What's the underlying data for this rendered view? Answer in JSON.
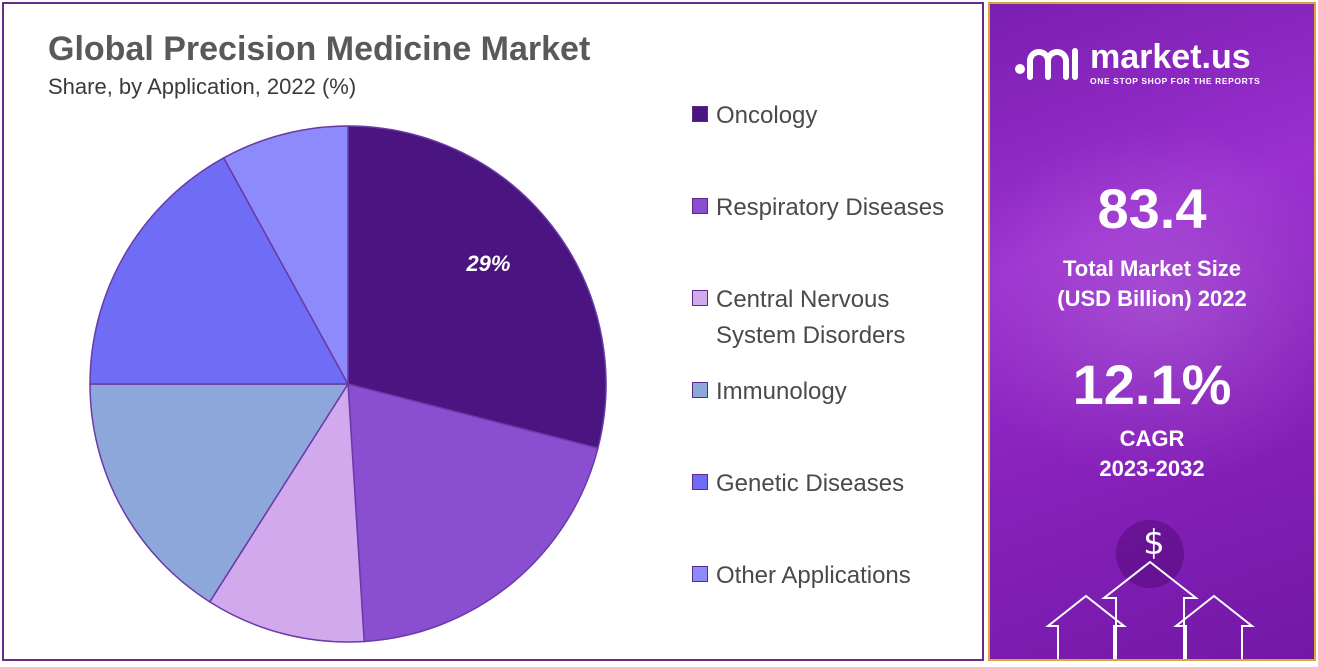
{
  "header": {
    "title": "Global Precision Medicine Market",
    "subtitle": "Share, by Application, 2022 (%)"
  },
  "chart_data": {
    "type": "pie",
    "categories": [
      "Oncology",
      "Respiratory Diseases",
      "Central Nervous System Disorders",
      "Immunology",
      "Genetic Diseases",
      "Other Applications"
    ],
    "values": [
      29,
      20,
      10,
      16,
      17,
      8
    ],
    "colors": [
      "#4b1581",
      "#8a4fd1",
      "#d3a9ee",
      "#8ea7db",
      "#6f6cf5",
      "#8d8afc"
    ],
    "data_labels": [
      "29%",
      "",
      "",
      "",
      "",
      ""
    ],
    "legend_position": "right"
  },
  "brand": {
    "name": "market.us",
    "tagline": "ONE STOP SHOP FOR THE REPORTS"
  },
  "stats": {
    "market_size_value": "83.4",
    "market_size_label_1": "Total Market Size",
    "market_size_label_2": "(USD Billion) 2022",
    "cagr_value": "12.1%",
    "cagr_label_1": "CAGR",
    "cagr_label_2": "2023-2032"
  },
  "icons": {
    "dollar": "$"
  }
}
